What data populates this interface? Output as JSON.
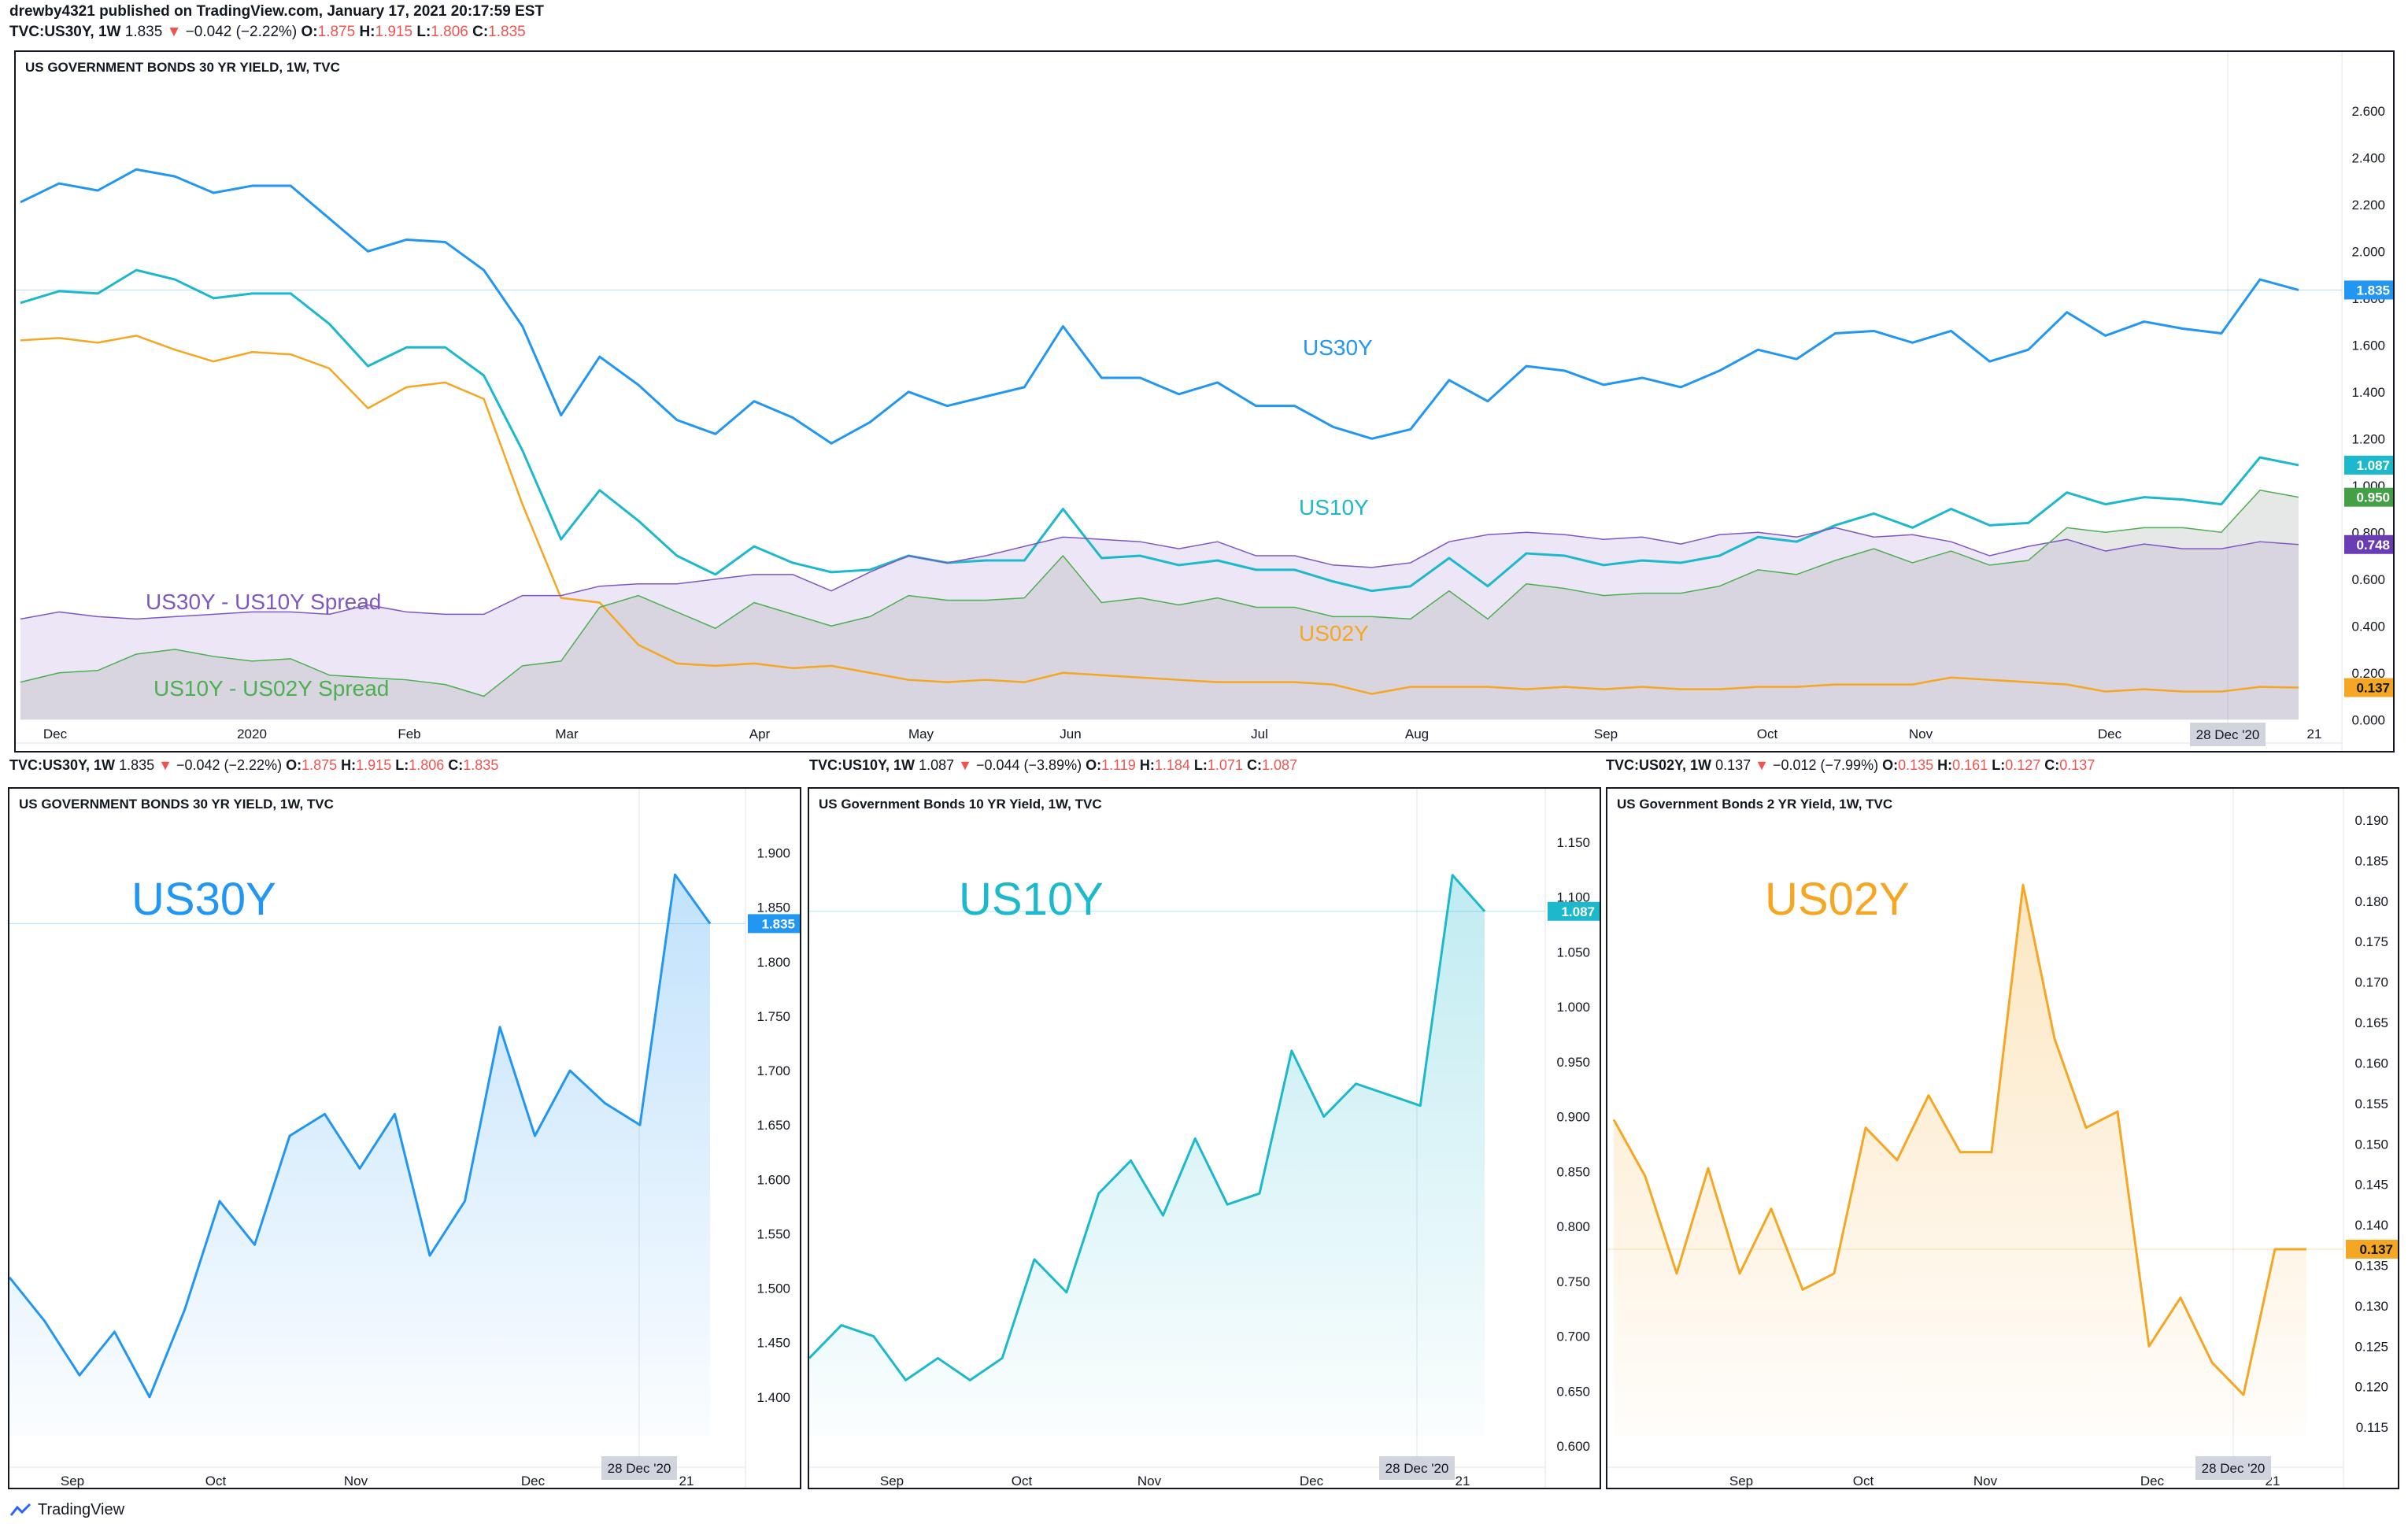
{
  "header": {
    "publisher_line": "drewby4321 published on TradingView.com, January 17, 2021 20:17:59 EST",
    "ticker": "TVC:US30Y, 1W",
    "last": "1.835",
    "change": "−0.042 (−2.22%)",
    "o_label": "O:",
    "o": "1.875",
    "h_label": "H:",
    "h": "1.915",
    "l_label": "L:",
    "l": "1.806",
    "c_label": "C:",
    "c": "1.835"
  },
  "panes": {
    "main_title": "US GOVERNMENT BONDS 30 YR YIELD, 1W, TVC",
    "p30_header": {
      "ticker": "TVC:US30Y, 1W",
      "last": "1.835",
      "change": "−0.042 (−2.22%)",
      "o": "1.875",
      "h": "1.915",
      "l": "1.806",
      "c": "1.835"
    },
    "p10_header": {
      "ticker": "TVC:US10Y, 1W",
      "last": "1.087",
      "change": "−0.044 (−3.89%)",
      "o": "1.119",
      "h": "1.184",
      "l": "1.071",
      "c": "1.087"
    },
    "p02_header": {
      "ticker": "TVC:US02Y, 1W",
      "last": "0.137",
      "change": "−0.012 (−7.99%)",
      "o": "0.135",
      "h": "0.161",
      "l": "0.127",
      "c": "0.137"
    },
    "p30_title": "US GOVERNMENT BONDS 30 YR YIELD, 1W, TVC",
    "p10_title": "US Government Bonds 10 YR Yield, 1W, TVC",
    "p02_title": "US Government Bonds 2 YR Yield, 1W, TVC"
  },
  "footer": {
    "brand": "TradingView"
  },
  "chart_data": [
    {
      "type": "line",
      "title": "US GOVERNMENT BONDS 30 YR YIELD, 1W, TVC",
      "colors": {
        "US30Y": "#2196f3",
        "US10Y": "#1cb8cc",
        "US02Y": "#f5a623",
        "spread_30_10": "#7e57c2",
        "spread_10_02": "#4caf50"
      },
      "ylim": [
        -0.1,
        2.65
      ],
      "yticks": [
        "2.600",
        "2.400",
        "2.200",
        "2.000",
        "1.800",
        "1.600",
        "1.400",
        "1.200",
        "1.000",
        "0.800",
        "0.600",
        "0.400",
        "0.200",
        "0.000"
      ],
      "xticks": [
        "Dec",
        "2020",
        "Feb",
        "Mar",
        "Apr",
        "May",
        "Jun",
        "Jul",
        "Aug",
        "Sep",
        "Oct",
        "Nov",
        "Dec",
        "21"
      ],
      "crosshair_label": "28 Dec '20",
      "last_values": {
        "US30Y": "1.835",
        "US10Y": "1.087",
        "spread_10_02": "0.950",
        "spread_30_10": "0.748",
        "US02Y": "0.137"
      },
      "annotations": [
        "US30Y",
        "US10Y",
        "US02Y",
        "US30Y - US10Y Spread",
        "US10Y - US02Y Spread"
      ],
      "series": [
        {
          "name": "US30Y",
          "values": [
            2.21,
            2.29,
            2.26,
            2.35,
            2.32,
            2.25,
            2.28,
            2.28,
            2.14,
            2.0,
            2.05,
            2.04,
            1.92,
            1.68,
            1.3,
            1.55,
            1.43,
            1.28,
            1.22,
            1.36,
            1.29,
            1.18,
            1.27,
            1.4,
            1.34,
            1.38,
            1.42,
            1.68,
            1.46,
            1.46,
            1.39,
            1.44,
            1.34,
            1.34,
            1.25,
            1.2,
            1.24,
            1.45,
            1.36,
            1.51,
            1.49,
            1.43,
            1.46,
            1.42,
            1.49,
            1.58,
            1.54,
            1.65,
            1.66,
            1.61,
            1.66,
            1.53,
            1.58,
            1.74,
            1.64,
            1.7,
            1.67,
            1.65,
            1.88,
            1.835
          ]
        },
        {
          "name": "US10Y",
          "values": [
            1.78,
            1.83,
            1.82,
            1.92,
            1.88,
            1.8,
            1.82,
            1.82,
            1.69,
            1.51,
            1.59,
            1.59,
            1.47,
            1.15,
            0.77,
            0.98,
            0.85,
            0.7,
            0.62,
            0.74,
            0.67,
            0.63,
            0.64,
            0.7,
            0.67,
            0.68,
            0.68,
            0.9,
            0.69,
            0.7,
            0.66,
            0.68,
            0.64,
            0.64,
            0.59,
            0.55,
            0.57,
            0.69,
            0.57,
            0.71,
            0.7,
            0.66,
            0.68,
            0.67,
            0.7,
            0.78,
            0.76,
            0.83,
            0.88,
            0.82,
            0.9,
            0.83,
            0.84,
            0.97,
            0.92,
            0.95,
            0.94,
            0.92,
            1.12,
            1.087
          ]
        },
        {
          "name": "US02Y",
          "values": [
            1.62,
            1.63,
            1.61,
            1.64,
            1.58,
            1.53,
            1.57,
            1.56,
            1.5,
            1.33,
            1.42,
            1.44,
            1.37,
            0.92,
            0.52,
            0.5,
            0.32,
            0.24,
            0.23,
            0.24,
            0.22,
            0.23,
            0.2,
            0.17,
            0.16,
            0.17,
            0.16,
            0.2,
            0.19,
            0.18,
            0.17,
            0.16,
            0.16,
            0.16,
            0.15,
            0.11,
            0.14,
            0.14,
            0.14,
            0.13,
            0.14,
            0.13,
            0.14,
            0.13,
            0.13,
            0.14,
            0.14,
            0.15,
            0.15,
            0.15,
            0.18,
            0.17,
            0.16,
            0.15,
            0.12,
            0.13,
            0.12,
            0.12,
            0.14,
            0.137
          ]
        },
        {
          "name": "US30Y - US10Y Spread",
          "values": [
            0.43,
            0.46,
            0.44,
            0.43,
            0.44,
            0.45,
            0.46,
            0.46,
            0.45,
            0.49,
            0.46,
            0.45,
            0.45,
            0.53,
            0.53,
            0.57,
            0.58,
            0.58,
            0.6,
            0.62,
            0.62,
            0.55,
            0.63,
            0.7,
            0.67,
            0.7,
            0.74,
            0.78,
            0.77,
            0.76,
            0.73,
            0.76,
            0.7,
            0.7,
            0.66,
            0.65,
            0.67,
            0.76,
            0.79,
            0.8,
            0.79,
            0.77,
            0.78,
            0.75,
            0.79,
            0.8,
            0.78,
            0.82,
            0.78,
            0.79,
            0.76,
            0.7,
            0.74,
            0.77,
            0.72,
            0.75,
            0.73,
            0.73,
            0.76,
            0.748
          ]
        },
        {
          "name": "US10Y - US02Y Spread",
          "values": [
            0.16,
            0.2,
            0.21,
            0.28,
            0.3,
            0.27,
            0.25,
            0.26,
            0.19,
            0.18,
            0.17,
            0.15,
            0.1,
            0.23,
            0.25,
            0.48,
            0.53,
            0.46,
            0.39,
            0.5,
            0.45,
            0.4,
            0.44,
            0.53,
            0.51,
            0.51,
            0.52,
            0.7,
            0.5,
            0.52,
            0.49,
            0.52,
            0.48,
            0.48,
            0.44,
            0.44,
            0.43,
            0.55,
            0.43,
            0.58,
            0.56,
            0.53,
            0.54,
            0.54,
            0.57,
            0.64,
            0.62,
            0.68,
            0.73,
            0.67,
            0.72,
            0.66,
            0.68,
            0.82,
            0.8,
            0.82,
            0.82,
            0.8,
            0.98,
            0.95
          ]
        }
      ]
    },
    {
      "type": "area",
      "title": "US GOVERNMENT BONDS 30 YR YIELD, 1W, TVC",
      "overlay_label": "US30Y",
      "color": "#2196f3",
      "ylim": [
        1.35,
        1.93
      ],
      "yticks": [
        "1.900",
        "1.850",
        "1.800",
        "1.750",
        "1.700",
        "1.650",
        "1.600",
        "1.550",
        "1.500",
        "1.450",
        "1.400"
      ],
      "xticks": [
        "Sep",
        "Oct",
        "Nov",
        "Dec",
        "21"
      ],
      "crosshair_label": "28 Dec '20",
      "last_value": "1.835",
      "values": [
        1.51,
        1.47,
        1.42,
        1.46,
        1.4,
        1.48,
        1.58,
        1.54,
        1.64,
        1.66,
        1.61,
        1.66,
        1.53,
        1.58,
        1.74,
        1.64,
        1.7,
        1.67,
        1.65,
        1.88,
        1.835
      ]
    },
    {
      "type": "area",
      "title": "US Government Bonds 10 YR Yield, 1W, TVC",
      "overlay_label": "US10Y",
      "color": "#1cb8cc",
      "ylim": [
        0.595,
        1.17
      ],
      "yticks": [
        "1.150",
        "1.100",
        "1.050",
        "1.000",
        "0.950",
        "0.900",
        "0.850",
        "0.800",
        "0.750",
        "0.700",
        "0.650",
        "0.600"
      ],
      "xticks": [
        "Sep",
        "Oct",
        "Nov",
        "Dec",
        "21"
      ],
      "crosshair_label": "28 Dec '20",
      "last_value": "1.087",
      "values": [
        0.68,
        0.71,
        0.7,
        0.66,
        0.68,
        0.66,
        0.68,
        0.77,
        0.74,
        0.83,
        0.86,
        0.81,
        0.88,
        0.82,
        0.83,
        0.96,
        0.9,
        0.93,
        0.92,
        0.91,
        1.12,
        1.087
      ]
    },
    {
      "type": "area",
      "title": "US Government Bonds 2 YR Yield, 1W, TVC",
      "overlay_label": "US02Y",
      "color": "#f5a623",
      "ylim": [
        0.112,
        0.19
      ],
      "yticks": [
        "0.190",
        "0.185",
        "0.180",
        "0.175",
        "0.170",
        "0.165",
        "0.160",
        "0.155",
        "0.150",
        "0.145",
        "0.140",
        "0.135",
        "0.130",
        "0.125",
        "0.120",
        "0.115"
      ],
      "xticks": [
        "Sep",
        "Oct",
        "Nov",
        "Dec",
        "21"
      ],
      "crosshair_label": "28 Dec '20",
      "last_value": "0.137",
      "values": [
        0.153,
        0.146,
        0.134,
        0.147,
        0.134,
        0.142,
        0.132,
        0.134,
        0.152,
        0.148,
        0.156,
        0.149,
        0.149,
        0.182,
        0.163,
        0.152,
        0.154,
        0.125,
        0.131,
        0.123,
        0.119,
        0.137,
        0.137
      ]
    }
  ]
}
